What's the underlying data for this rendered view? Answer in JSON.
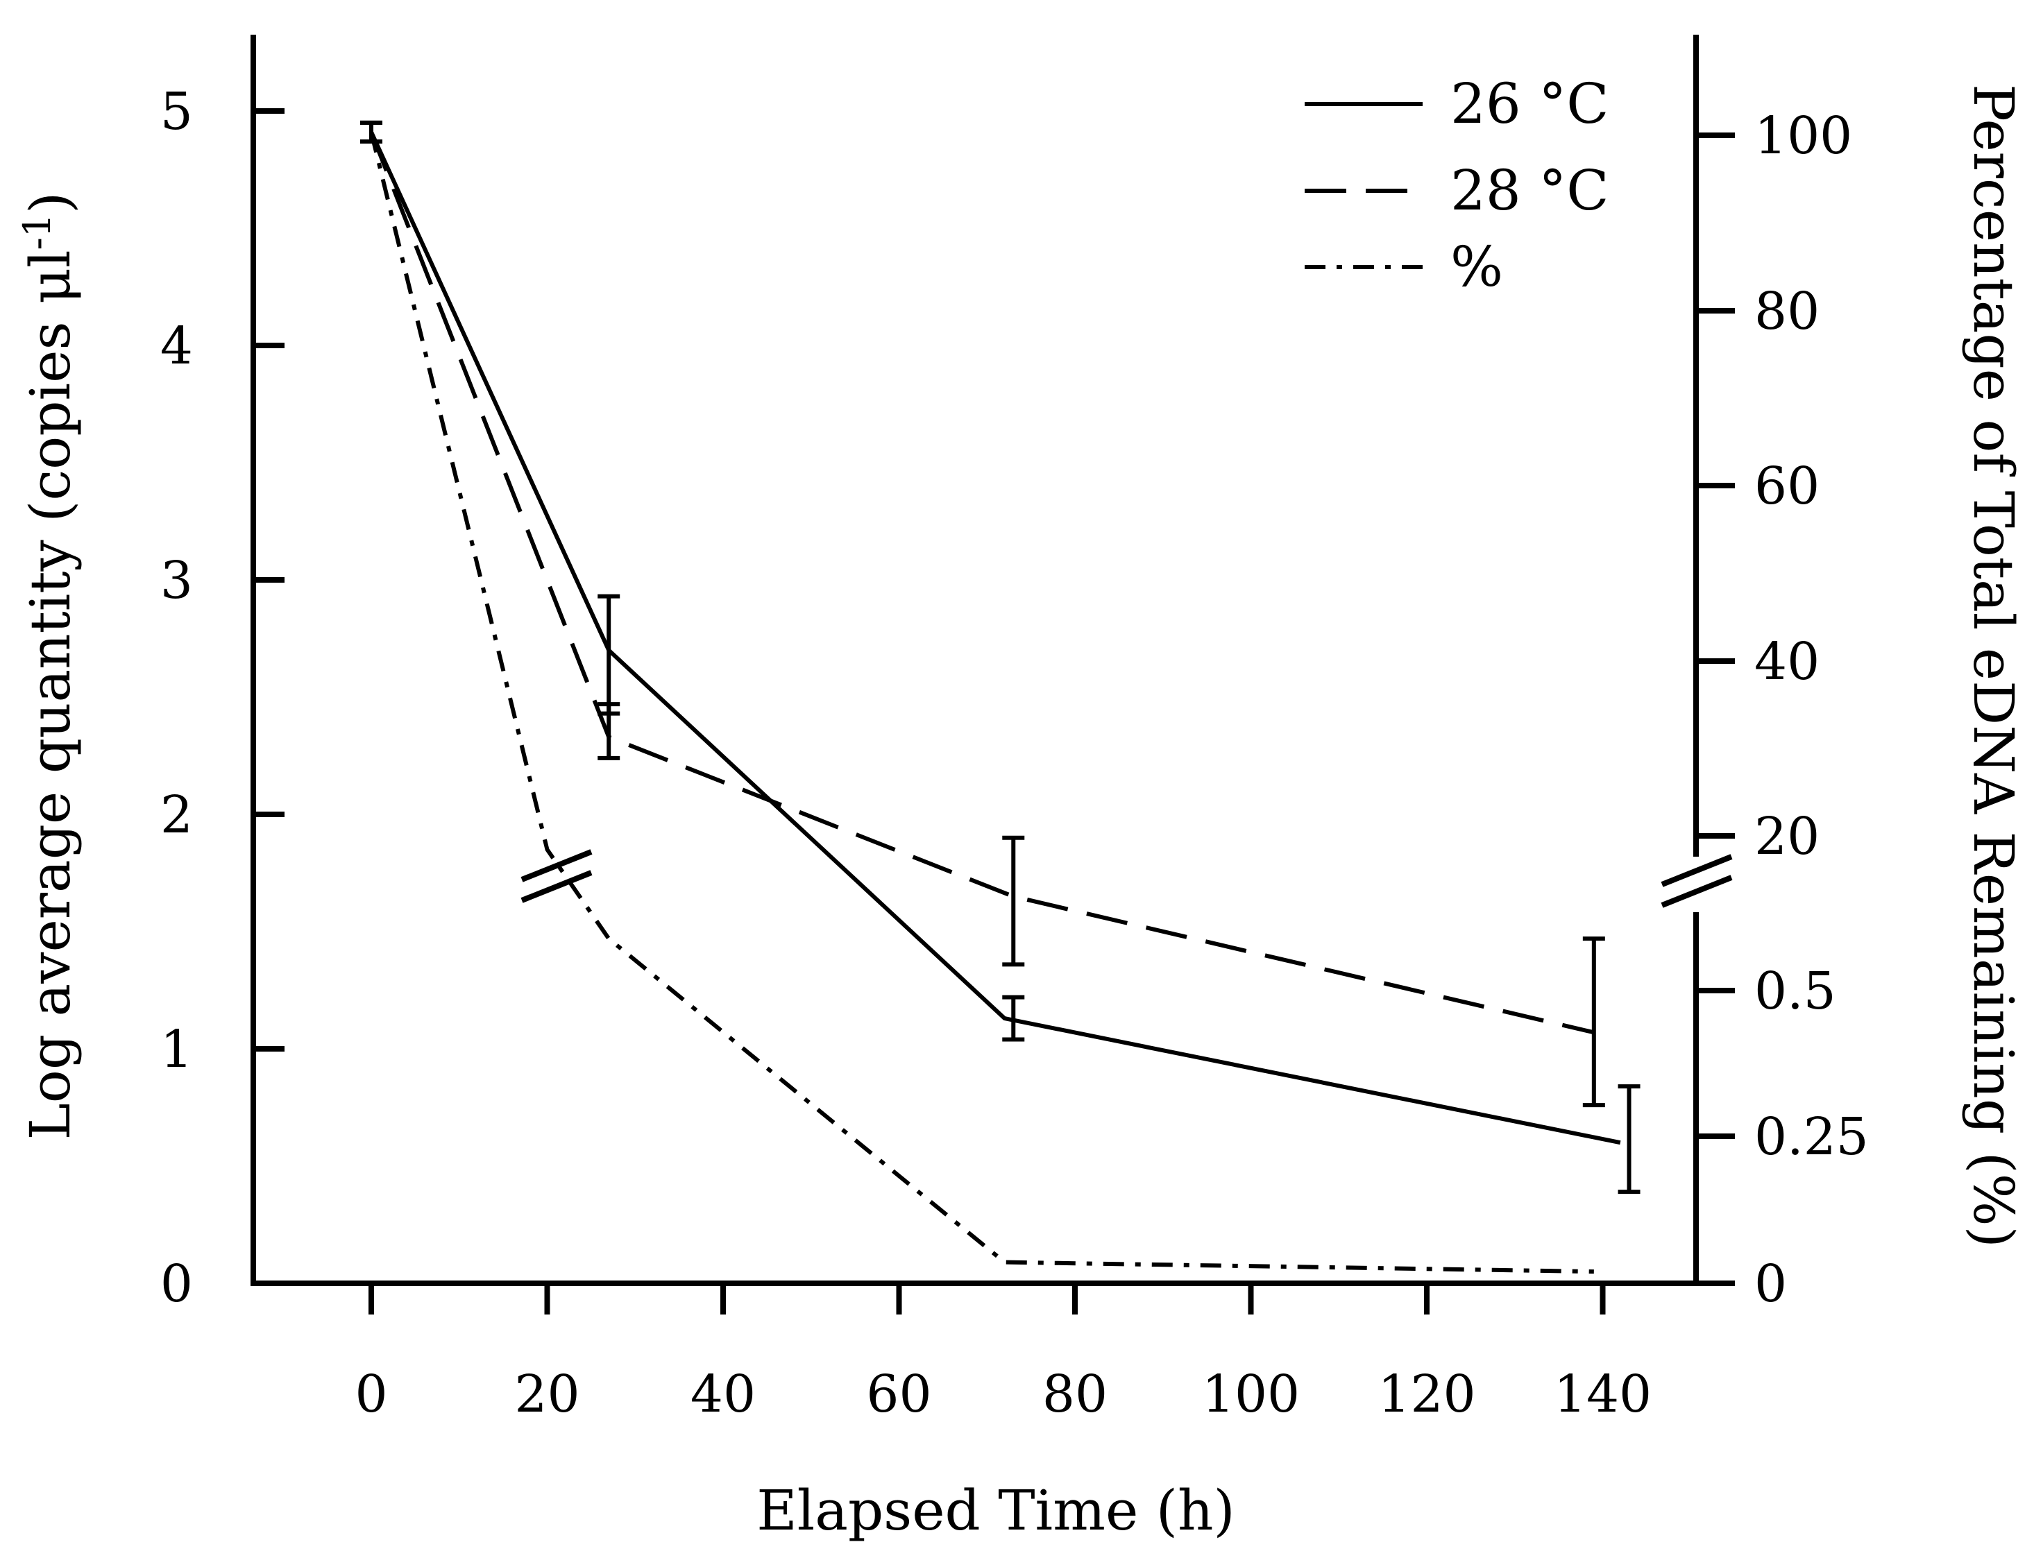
{
  "chart_data": {
    "type": "line",
    "x": [
      0,
      27,
      72,
      140
    ],
    "xlabel": "Elapsed Time (h)",
    "xlim": [
      -13,
      150
    ],
    "xticks": [
      0,
      20,
      40,
      60,
      80,
      100,
      120,
      140
    ],
    "xtick_labels": [
      "0",
      "20",
      "40",
      "60",
      "80",
      "100",
      "120",
      "140"
    ],
    "ylabel_left": "Log average quantity (copies μl",
    "ylabel_left_sup": "-1",
    "ylabel_left_close": ")",
    "ylim_left": [
      0,
      5.3
    ],
    "yticks_left": [
      0,
      1,
      2,
      3,
      4,
      5
    ],
    "ytick_labels_left": [
      "0",
      "1",
      "2",
      "3",
      "4",
      "5"
    ],
    "ylabel_right": "Percentage of Total eDNA Remaining (%)",
    "yticks_right_labels": [
      "0",
      "0.25",
      "0.5",
      "20",
      "40",
      "60",
      "80",
      "100"
    ],
    "right_axis_break_between": [
      "0.5",
      "20"
    ],
    "series": [
      {
        "name": "26 °C",
        "style": "solid",
        "axis": "left",
        "x": [
          0,
          27,
          72,
          142
        ],
        "values": [
          4.91,
          2.7,
          1.13,
          0.6
        ],
        "err_low": [
          4.87,
          2.43,
          1.04,
          0.39
        ],
        "err_high": [
          4.95,
          2.93,
          1.22,
          0.84
        ],
        "err_x": [
          0,
          27,
          73,
          143
        ]
      },
      {
        "name": "28 °C",
        "style": "dashed",
        "axis": "left",
        "x": [
          0,
          27,
          73,
          139
        ],
        "values": [
          4.91,
          2.33,
          1.65,
          1.07
        ],
        "err_low": [
          4.87,
          2.24,
          1.36,
          0.76
        ],
        "err_high": [
          4.95,
          2.47,
          1.9,
          1.47
        ],
        "err_x": [
          0,
          27,
          73,
          139
        ]
      },
      {
        "name": "%",
        "style": "dashdot",
        "axis": "right",
        "x": [
          0,
          20,
          27,
          72,
          139
        ],
        "values_pixel_scale_left": [
          4.91,
          1.85,
          1.47,
          0.09,
          0.05
        ]
      }
    ],
    "legend": {
      "position": "top-right",
      "entries": [
        {
          "label": "26 °C",
          "style": "solid"
        },
        {
          "label": "28 °C",
          "style": "dashed"
        },
        {
          "label": "%",
          "style": "dashdot"
        }
      ]
    },
    "grid": false
  }
}
